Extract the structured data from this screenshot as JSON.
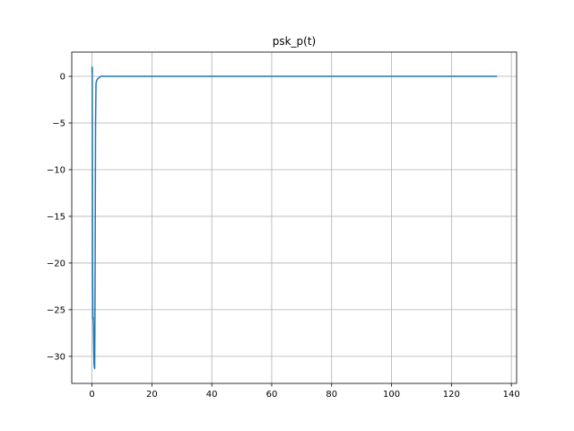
{
  "chart_data": {
    "type": "line",
    "title": "psk_p(t)",
    "xlabel": "",
    "ylabel": "",
    "xlim": [
      -6.75,
      141.75
    ],
    "ylim": [
      -32.9,
      2.6
    ],
    "x_ticks": [
      0,
      20,
      40,
      60,
      80,
      100,
      120,
      140
    ],
    "y_ticks": [
      0,
      -5,
      -10,
      -15,
      -20,
      -25,
      -30
    ],
    "grid": true,
    "legend": "none",
    "series": [
      {
        "color": "#1f77b4",
        "x": [
          0,
          0.05,
          0.1,
          0.2,
          0.3,
          0.4,
          0.5,
          0.6,
          0.7,
          0.8,
          0.9,
          1.0,
          1.1,
          1.2,
          1.35,
          1.5,
          1.8,
          2.5,
          3.0,
          10,
          20,
          40,
          60,
          80,
          100,
          120,
          135
        ],
        "y": [
          0.5,
          1.0,
          0.9,
          -20.0,
          -26.0,
          -25.8,
          -27.0,
          -29.5,
          -30.8,
          -31.2,
          -31.3,
          -25.0,
          -15.0,
          -5.0,
          -0.8,
          -0.5,
          -0.3,
          -0.1,
          0,
          0,
          0,
          0,
          0,
          0,
          0,
          0,
          0
        ]
      }
    ]
  }
}
